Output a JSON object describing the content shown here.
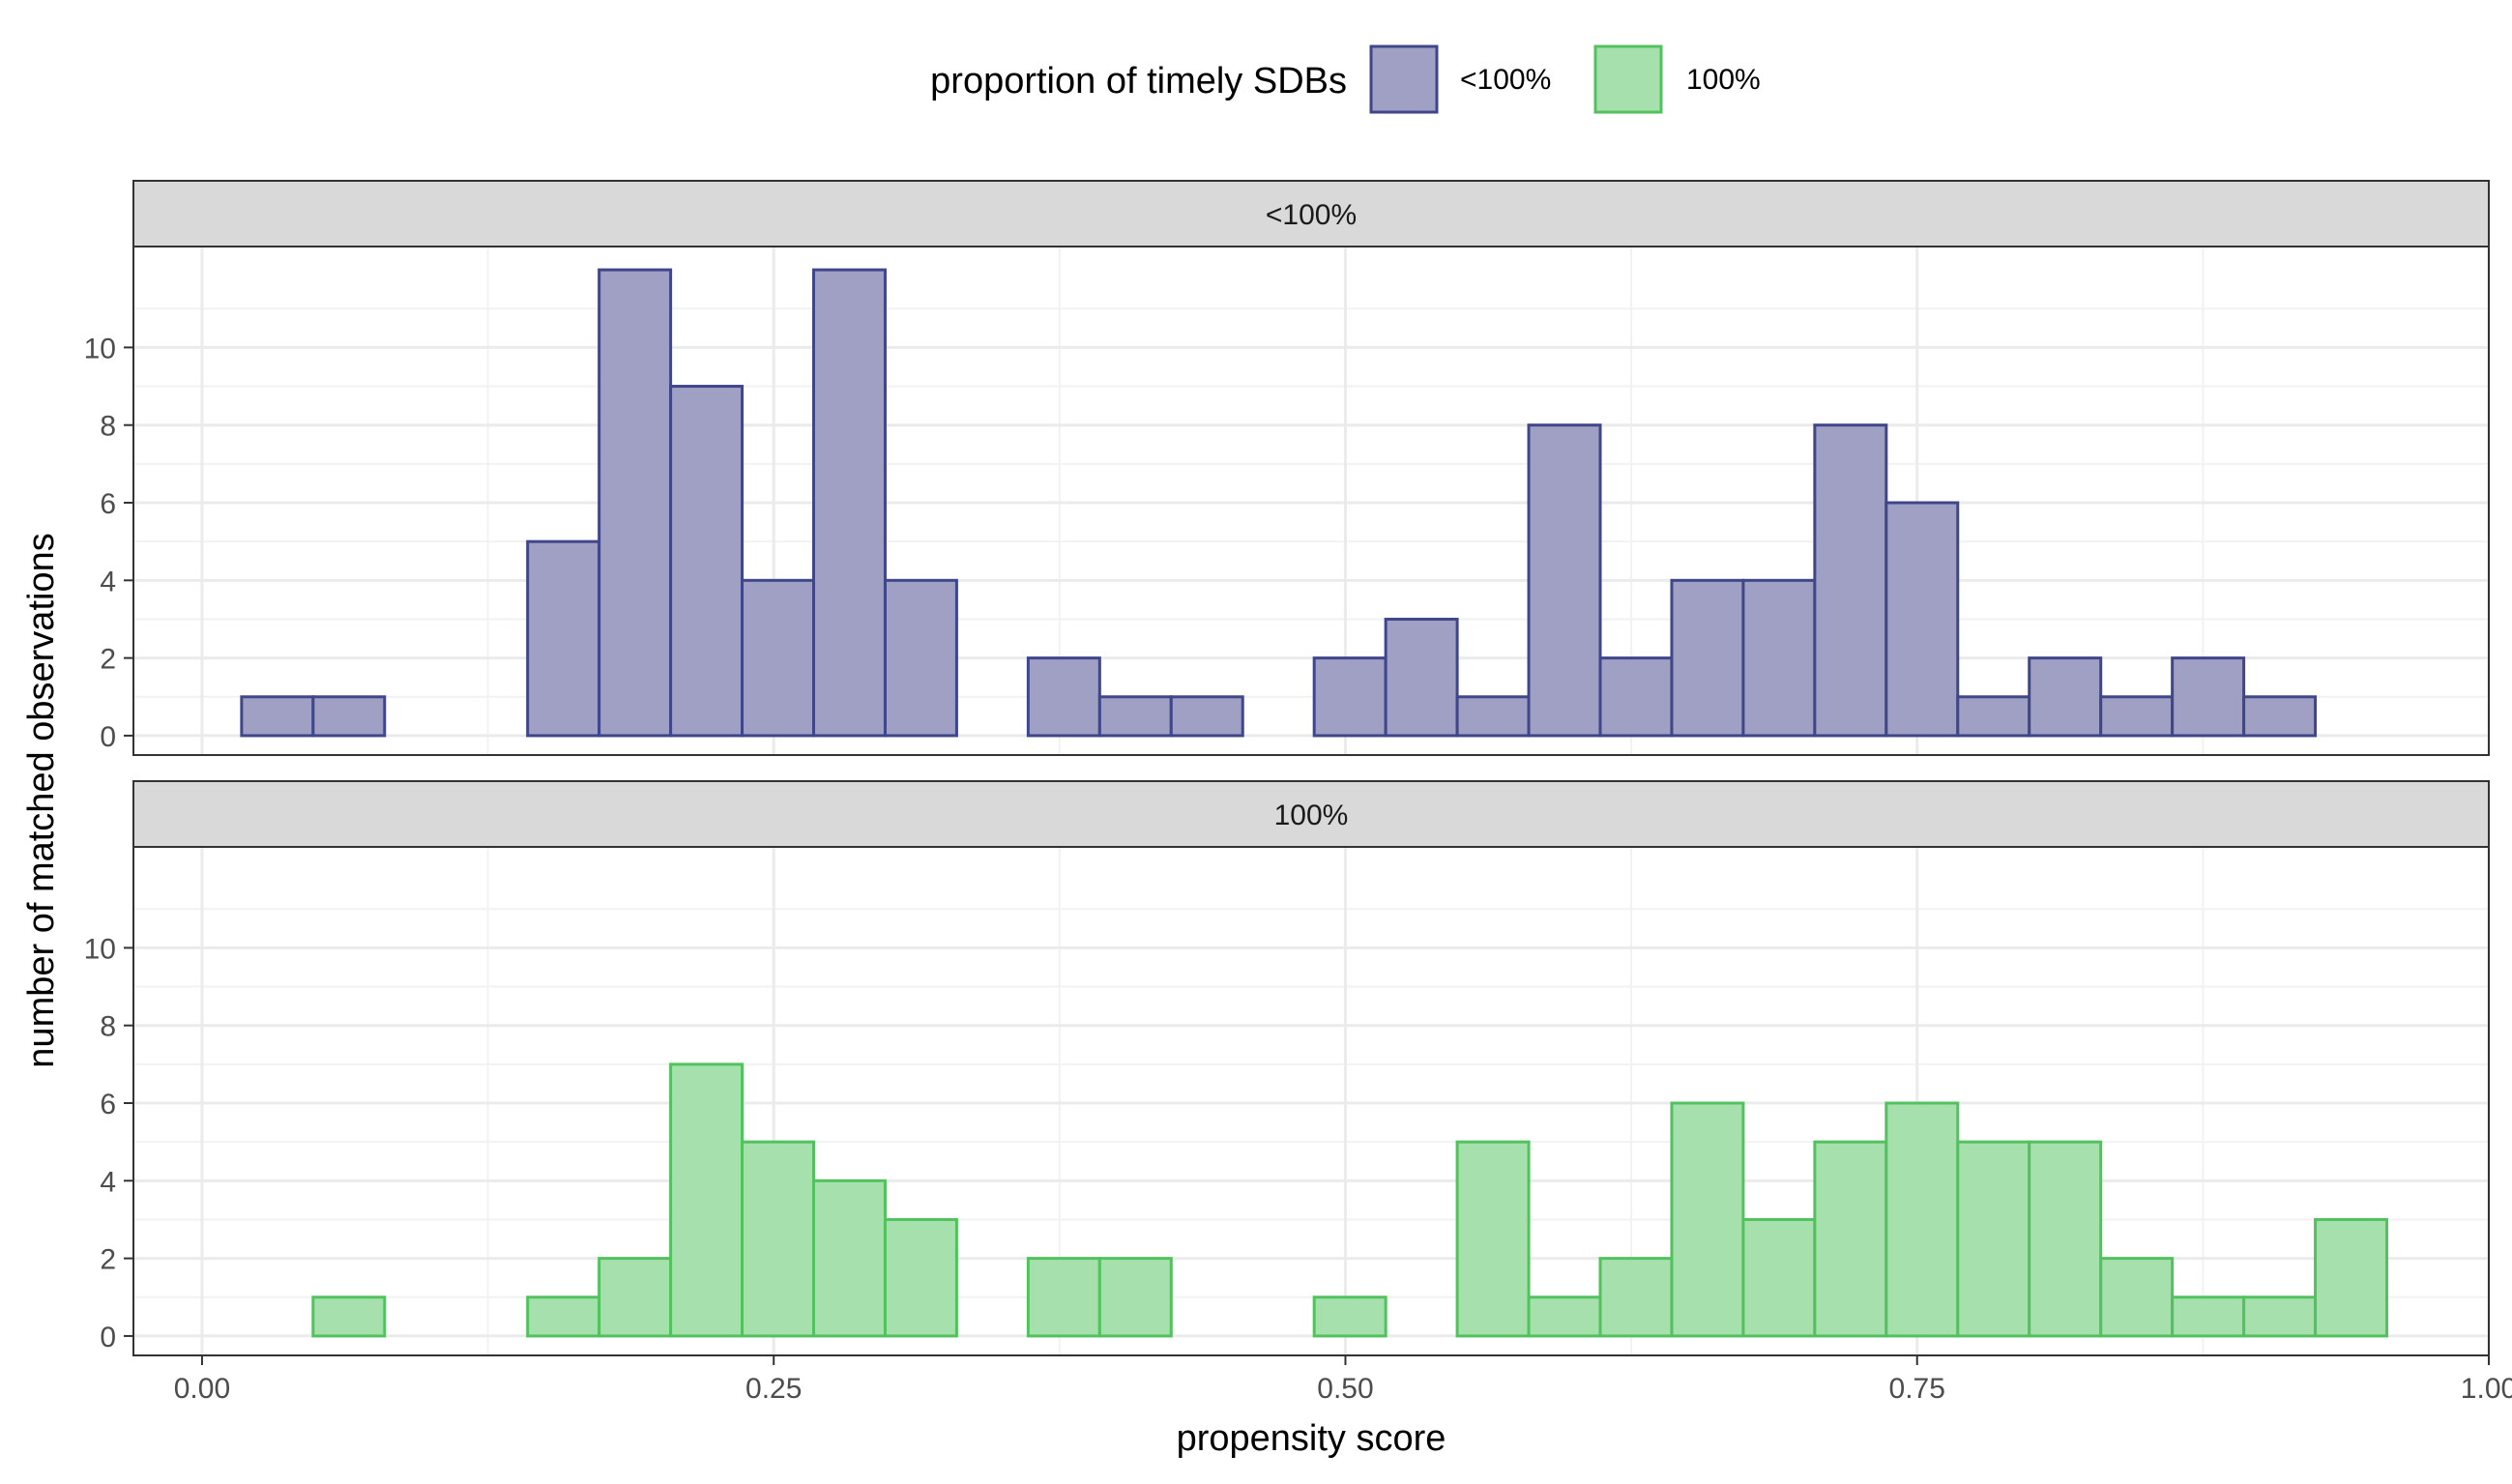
{
  "chart_data": {
    "type": "bar",
    "subtype": "faceted-histogram",
    "title": "",
    "xlabel": "propensity score",
    "ylabel": "number of matched observations",
    "xlim": [
      -0.03,
      1.0
    ],
    "ylim": [
      -0.5,
      12.6
    ],
    "x_ticks": [
      0.0,
      0.25,
      0.5,
      0.75,
      1.0
    ],
    "x_tick_labels": [
      "0.00",
      "0.25",
      "0.50",
      "0.75",
      "1.00"
    ],
    "y_ticks": [
      0,
      2,
      4,
      6,
      8,
      10
    ],
    "y_tick_labels": [
      "0",
      "2",
      "4",
      "6",
      "8",
      "10"
    ],
    "grid": true,
    "legend": {
      "title": "proportion of timely SDBs",
      "position": "top",
      "entries": [
        "<100%",
        "100%"
      ]
    },
    "bin_start": 0.0173,
    "bin_width": 0.03127,
    "bins": 30,
    "facets": [
      {
        "strip": "<100%",
        "fill": "#a0a0c4",
        "stroke": "#3f4689",
        "values": [
          1,
          1,
          0,
          0,
          5,
          12,
          9,
          4,
          12,
          4,
          0,
          2,
          1,
          1,
          0,
          2,
          3,
          1,
          8,
          2,
          4,
          4,
          8,
          6,
          1,
          2,
          1,
          2,
          1,
          0
        ]
      },
      {
        "strip": "100%",
        "fill": "#a6e0ac",
        "stroke": "#52c25e",
        "values": [
          0,
          1,
          0,
          0,
          1,
          2,
          7,
          5,
          4,
          3,
          0,
          2,
          2,
          0,
          0,
          1,
          0,
          5,
          1,
          2,
          6,
          3,
          5,
          6,
          5,
          5,
          2,
          1,
          1,
          3
        ]
      }
    ]
  }
}
